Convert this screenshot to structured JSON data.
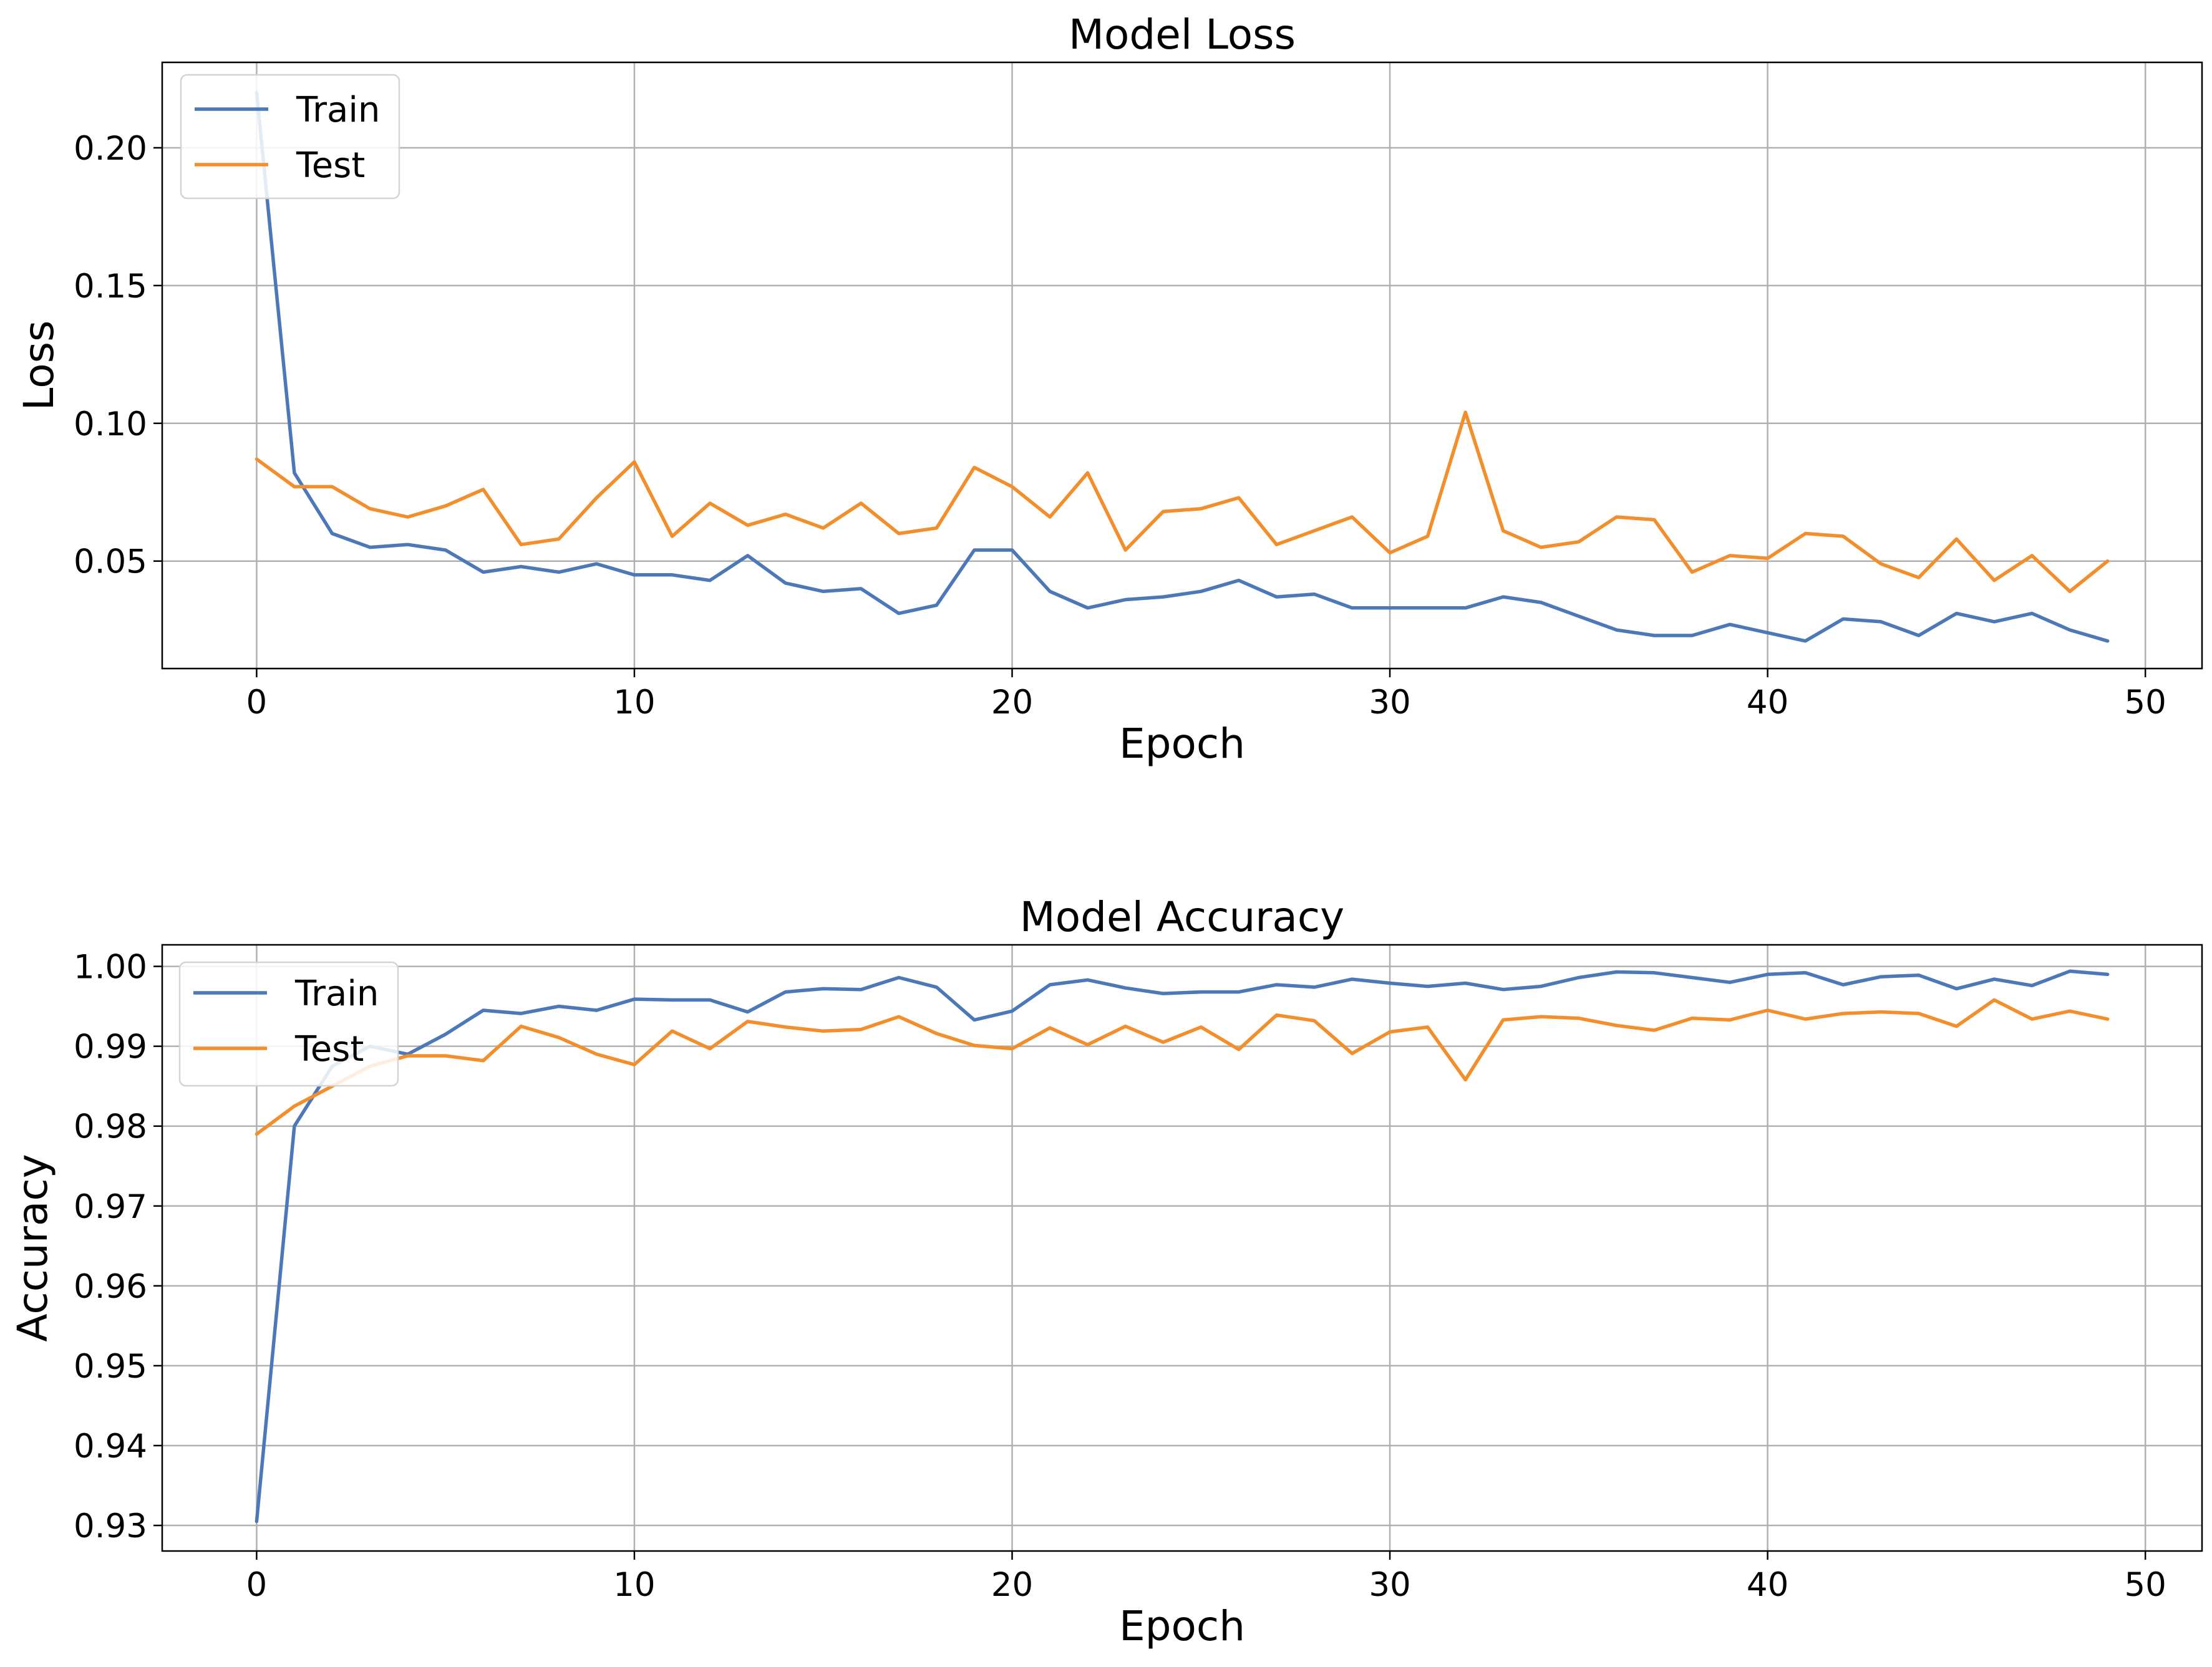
{
  "chart_data": [
    {
      "type": "line",
      "title": "Model Loss",
      "xlabel": "Epoch",
      "ylabel": "Loss",
      "xlim": [
        -2.5,
        51.5
      ],
      "ylim": [
        0.011,
        0.231
      ],
      "xticks": [
        0,
        10,
        20,
        30,
        40,
        50
      ],
      "xtick_labels": [
        "0",
        "10",
        "20",
        "30",
        "40",
        "50"
      ],
      "yticks": [
        0.05,
        0.1,
        0.15,
        0.2
      ],
      "ytick_labels": [
        "0.05",
        "0.10",
        "0.15",
        "0.20"
      ],
      "grid": true,
      "legend": "top-left",
      "x": [
        0,
        1,
        2,
        3,
        4,
        5,
        6,
        7,
        8,
        9,
        10,
        11,
        12,
        13,
        14,
        15,
        16,
        17,
        18,
        19,
        20,
        21,
        22,
        23,
        24,
        25,
        26,
        27,
        28,
        29,
        30,
        31,
        32,
        33,
        34,
        35,
        36,
        37,
        38,
        39,
        40,
        41,
        42,
        43,
        44,
        45,
        46,
        47,
        48,
        49
      ],
      "series": [
        {
          "name": "Train",
          "color": "#4c78b8",
          "values": [
            0.22,
            0.082,
            0.06,
            0.055,
            0.056,
            0.054,
            0.046,
            0.048,
            0.046,
            0.049,
            0.045,
            0.045,
            0.043,
            0.052,
            0.042,
            0.039,
            0.04,
            0.031,
            0.034,
            0.054,
            0.054,
            0.039,
            0.033,
            0.036,
            0.037,
            0.039,
            0.043,
            0.037,
            0.038,
            0.033,
            0.033,
            0.033,
            0.033,
            0.037,
            0.035,
            0.03,
            0.025,
            0.023,
            0.023,
            0.027,
            0.024,
            0.021,
            0.029,
            0.028,
            0.023,
            0.031,
            0.028,
            0.031,
            0.025,
            0.021
          ]
        },
        {
          "name": "Test",
          "color": "#f28e2b",
          "values": [
            0.087,
            0.077,
            0.077,
            0.069,
            0.066,
            0.07,
            0.076,
            0.056,
            0.058,
            0.073,
            0.086,
            0.059,
            0.071,
            0.063,
            0.067,
            0.062,
            0.071,
            0.06,
            0.062,
            0.084,
            0.077,
            0.066,
            0.082,
            0.054,
            0.068,
            0.069,
            0.073,
            0.056,
            0.061,
            0.066,
            0.053,
            0.059,
            0.104,
            0.061,
            0.055,
            0.057,
            0.066,
            0.065,
            0.046,
            0.052,
            0.051,
            0.06,
            0.059,
            0.049,
            0.044,
            0.058,
            0.043,
            0.052,
            0.039,
            0.05
          ]
        }
      ]
    },
    {
      "type": "line",
      "title": "Model Accuracy",
      "xlabel": "Epoch",
      "ylabel": "Accuracy",
      "xlim": [
        -2.5,
        51.5
      ],
      "ylim": [
        0.9268,
        1.0027
      ],
      "xticks": [
        0,
        10,
        20,
        30,
        40,
        50
      ],
      "xtick_labels": [
        "0",
        "10",
        "20",
        "30",
        "40",
        "50"
      ],
      "yticks": [
        0.93,
        0.94,
        0.95,
        0.96,
        0.97,
        0.98,
        0.99,
        1.0
      ],
      "ytick_labels": [
        "0.93",
        "0.94",
        "0.95",
        "0.96",
        "0.97",
        "0.98",
        "0.99",
        "1.00"
      ],
      "grid": true,
      "legend": "top-left",
      "x": [
        0,
        1,
        2,
        3,
        4,
        5,
        6,
        7,
        8,
        9,
        10,
        11,
        12,
        13,
        14,
        15,
        16,
        17,
        18,
        19,
        20,
        21,
        22,
        23,
        24,
        25,
        26,
        27,
        28,
        29,
        30,
        31,
        32,
        33,
        34,
        35,
        36,
        37,
        38,
        39,
        40,
        41,
        42,
        43,
        44,
        45,
        46,
        47,
        48,
        49
      ],
      "series": [
        {
          "name": "Train",
          "color": "#4c78b8",
          "values": [
            0.9305,
            0.98,
            0.9875,
            0.99,
            0.989,
            0.9915,
            0.9945,
            0.9941,
            0.995,
            0.9945,
            0.9959,
            0.9958,
            0.9958,
            0.9943,
            0.9968,
            0.9972,
            0.9971,
            0.9986,
            0.9974,
            0.9933,
            0.9944,
            0.9977,
            0.9983,
            0.9973,
            0.9966,
            0.9968,
            0.9968,
            0.9977,
            0.9974,
            0.9984,
            0.9979,
            0.9975,
            0.9979,
            0.9971,
            0.9975,
            0.9986,
            0.9993,
            0.9992,
            0.9986,
            0.998,
            0.999,
            0.9992,
            0.9977,
            0.9987,
            0.9989,
            0.9972,
            0.9984,
            0.9976,
            0.9994,
            0.999
          ]
        },
        {
          "name": "Test",
          "color": "#f28e2b",
          "values": [
            0.979,
            0.9825,
            0.985,
            0.9875,
            0.9888,
            0.9888,
            0.9882,
            0.9925,
            0.9911,
            0.989,
            0.9877,
            0.9919,
            0.9897,
            0.9931,
            0.9924,
            0.9919,
            0.9921,
            0.9937,
            0.9916,
            0.9901,
            0.9897,
            0.9923,
            0.9902,
            0.9925,
            0.9905,
            0.9924,
            0.9896,
            0.9939,
            0.9932,
            0.9891,
            0.9918,
            0.9924,
            0.9858,
            0.9933,
            0.9937,
            0.9935,
            0.9926,
            0.992,
            0.9935,
            0.9933,
            0.9945,
            0.9934,
            0.9941,
            0.9943,
            0.9941,
            0.9925,
            0.9958,
            0.9934,
            0.9944,
            0.9934
          ]
        }
      ]
    }
  ]
}
